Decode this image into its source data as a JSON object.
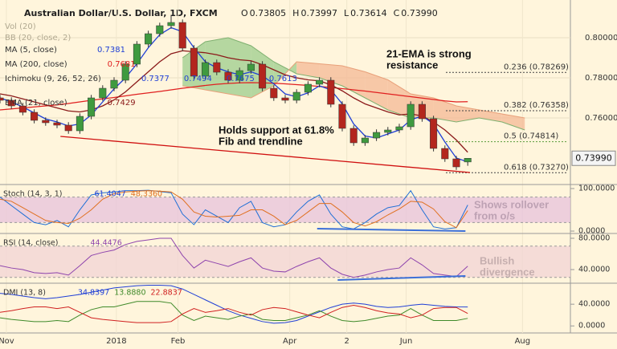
{
  "chart_data": {
    "type": "candlestick",
    "title": "Australian Dollar/U.S. Dollar, 1D, FXCM",
    "ohlc_header": [
      {
        "key": "O",
        "value": "0.73805"
      },
      {
        "key": "H",
        "value": "0.73997"
      },
      {
        "key": "L",
        "value": "0.73614"
      },
      {
        "key": "C",
        "value": "0.73990"
      }
    ],
    "indicator_legend": [
      {
        "name": "Vol (20)",
        "values": []
      },
      {
        "name": "BB (20, close, 2)",
        "values": []
      },
      {
        "name": "MA (5, close)",
        "values": [
          "0.7381"
        ],
        "color": "#1f3fd6"
      },
      {
        "name": "MA (200, close)",
        "values": [
          "0.7681"
        ],
        "color": "#e02020"
      },
      {
        "name": "Ichimoku (9, 26, 52, 26)",
        "values": [
          "0.7377",
          "0.7494",
          "0.7675",
          "0.7613"
        ],
        "color": "#1f3fd6"
      },
      {
        "name": "EMA (21, close)",
        "values": [
          "0.7429"
        ],
        "color": "#8b1a1a"
      }
    ],
    "x": [
      0,
      1,
      2,
      3,
      4,
      5,
      6,
      7,
      8,
      9,
      10,
      11,
      12,
      13,
      14,
      15,
      16,
      17,
      18,
      19,
      20,
      21,
      22,
      23,
      24,
      25,
      26,
      27,
      28,
      29,
      30,
      31,
      32,
      33,
      34,
      35,
      36,
      37,
      38,
      39,
      40,
      41
    ],
    "xlim": [
      0,
      50
    ],
    "xticks": [
      {
        "value": 0.56,
        "label": "Nov"
      },
      {
        "value": 10.2,
        "label": "2018"
      },
      {
        "value": 15.6,
        "label": "Feb"
      },
      {
        "value": 25.4,
        "label": "Apr"
      },
      {
        "value": 30.4,
        "label": "2"
      },
      {
        "value": 35.6,
        "label": "Jun"
      },
      {
        "value": 45.8,
        "label": "Aug"
      }
    ],
    "open": [
      0.77,
      0.7688,
      0.766,
      0.7628,
      0.7588,
      0.7576,
      0.7564,
      0.7536,
      0.7608,
      0.77,
      0.7748,
      0.7788,
      0.7868,
      0.7968,
      0.802,
      0.806,
      0.8076,
      0.7948,
      0.7808,
      0.7876,
      0.7828,
      0.7788,
      0.7836,
      0.7868,
      0.7748,
      0.77,
      0.7688,
      0.7728,
      0.7768,
      0.7788,
      0.7668,
      0.7548,
      0.7476,
      0.75,
      0.7528,
      0.754,
      0.7556,
      0.7668,
      0.7596,
      0.7448,
      0.7396,
      0.73805
    ],
    "high": [
      0.7715,
      0.7703,
      0.7675,
      0.7643,
      0.7603,
      0.7591,
      0.7579,
      0.7623,
      0.7715,
      0.7763,
      0.7803,
      0.7883,
      0.7983,
      0.8035,
      0.8075,
      0.811,
      0.8091,
      0.7963,
      0.7891,
      0.7891,
      0.7843,
      0.7851,
      0.7883,
      0.7883,
      0.7763,
      0.7715,
      0.7743,
      0.7783,
      0.7803,
      0.7803,
      0.7683,
      0.7563,
      0.7515,
      0.7543,
      0.7555,
      0.7571,
      0.7683,
      0.7683,
      0.7611,
      0.7463,
      0.7411,
      0.73997
    ],
    "low": [
      0.7673,
      0.7645,
      0.7613,
      0.7573,
      0.7561,
      0.7549,
      0.7521,
      0.7521,
      0.7593,
      0.7685,
      0.7733,
      0.7773,
      0.7853,
      0.7953,
      0.8005,
      0.8045,
      0.7933,
      0.7793,
      0.7793,
      0.7813,
      0.7773,
      0.7773,
      0.7821,
      0.7733,
      0.7685,
      0.7673,
      0.7673,
      0.7713,
      0.7753,
      0.7653,
      0.7533,
      0.7461,
      0.7461,
      0.7485,
      0.7513,
      0.7525,
      0.7541,
      0.7581,
      0.7433,
      0.7381,
      0.7341,
      0.73614
    ],
    "close": [
      0.7688,
      0.766,
      0.7628,
      0.7588,
      0.7576,
      0.7564,
      0.7536,
      0.7608,
      0.77,
      0.7748,
      0.7788,
      0.7868,
      0.7968,
      0.802,
      0.806,
      0.8076,
      0.7948,
      0.7808,
      0.7876,
      0.7828,
      0.7788,
      0.7836,
      0.7868,
      0.7748,
      0.77,
      0.7688,
      0.7728,
      0.7768,
      0.7788,
      0.7668,
      0.7548,
      0.7476,
      0.75,
      0.7528,
      0.754,
      0.7556,
      0.7668,
      0.7596,
      0.7448,
      0.7396,
      0.7356,
      0.7399
    ],
    "up_color": "#3f9a3f",
    "down_color": "#b3261e",
    "ylim": [
      0.7276,
      0.8168
    ],
    "yticks": [
      {
        "value": 0.8,
        "label": "0.80000"
      },
      {
        "value": 0.78,
        "label": "0.78000"
      },
      {
        "value": 0.76,
        "label": "0.76000"
      }
    ],
    "last_price": {
      "value": 0.7399,
      "label": "0.73990"
    },
    "overlays": [
      {
        "color": "#e02020",
        "values": [
          0.764,
          0.7645,
          0.765,
          0.7655,
          0.766,
          0.7665,
          0.7672,
          0.768,
          0.7688,
          0.7695,
          0.7702,
          0.771,
          0.7718,
          0.7725,
          0.7732,
          0.774,
          0.7748,
          0.7755,
          0.7762,
          0.7768,
          0.7772,
          0.7775,
          0.7776,
          0.7775,
          0.7773,
          0.777,
          0.7766,
          0.7762,
          0.7757,
          0.7752,
          0.7746,
          0.774,
          0.7734,
          0.7727,
          0.772,
          0.7713,
          0.7706,
          0.7699,
          0.7692,
          0.7685,
          0.768,
          0.7681
        ]
      },
      {
        "color": "#8b1a1a",
        "values": [
          0.772,
          0.771,
          0.7695,
          0.768,
          0.7665,
          0.765,
          0.7635,
          0.763,
          0.764,
          0.766,
          0.769,
          0.773,
          0.778,
          0.783,
          0.788,
          0.792,
          0.7935,
          0.793,
          0.7925,
          0.7915,
          0.79,
          0.789,
          0.7885,
          0.7865,
          0.784,
          0.7815,
          0.78,
          0.779,
          0.7785,
          0.7765,
          0.7735,
          0.77,
          0.767,
          0.765,
          0.763,
          0.7615,
          0.762,
          0.761,
          0.758,
          0.754,
          0.749,
          0.7429
        ]
      },
      {
        "color": "#1f3fd6",
        "values": [
          0.77,
          0.768,
          0.7655,
          0.7625,
          0.7595,
          0.758,
          0.756,
          0.757,
          0.7615,
          0.768,
          0.7745,
          0.78,
          0.787,
          0.795,
          0.8015,
          0.805,
          0.803,
          0.795,
          0.788,
          0.785,
          0.783,
          0.7815,
          0.783,
          0.781,
          0.777,
          0.772,
          0.7705,
          0.7725,
          0.776,
          0.774,
          0.767,
          0.757,
          0.751,
          0.75,
          0.752,
          0.754,
          0.759,
          0.761,
          0.757,
          0.748,
          0.74,
          0.7381
        ]
      }
    ],
    "cloud": {
      "x": [
        16,
        18,
        20,
        22,
        24,
        26,
        28,
        30,
        32,
        34,
        36,
        38,
        40,
        42,
        44,
        46
      ],
      "span_a": [
        0.79,
        0.798,
        0.8,
        0.796,
        0.788,
        0.782,
        0.78,
        0.776,
        0.77,
        0.764,
        0.76,
        0.76,
        0.758,
        0.76,
        0.758,
        0.754
      ],
      "span_b": [
        0.776,
        0.774,
        0.772,
        0.77,
        0.776,
        0.788,
        0.787,
        0.786,
        0.783,
        0.779,
        0.772,
        0.77,
        0.766,
        0.764,
        0.762,
        0.76
      ],
      "bull_color": "#9ccc8c",
      "bear_color": "#f4b896"
    },
    "trendline": {
      "x": [
        5.3,
        41.2
      ],
      "values": [
        0.7508,
        0.7328
      ],
      "color": "#d01010"
    },
    "fib_levels": [
      {
        "label": "0.236 (0.78269)",
        "value": 0.78269,
        "color": "#444444"
      },
      {
        "label": "0.382 (0.76358)",
        "value": 0.76358,
        "color": "#444444"
      },
      {
        "label": "0.5 (0.74814)",
        "value": 0.74814,
        "color": "#5a9a3a"
      },
      {
        "label": "0.618 (0.73270)",
        "value": 0.7327,
        "color": "#444444"
      }
    ],
    "annotations": [
      {
        "lines": [
          "21-EMA is strong",
          "resistance"
        ]
      },
      {
        "lines": [
          "Holds support at 61.8%",
          "Fib and trendline"
        ]
      },
      {
        "lines": [
          "Shows rollover",
          "from o/s"
        ]
      },
      {
        "lines": [
          "Bullish",
          "divergence"
        ]
      }
    ],
    "panels": [
      {
        "title": "Stoch (14, 3, 1)",
        "readouts": [
          {
            "text": "61.4047",
            "color": "#1f3fd6"
          },
          {
            "text": "48.3360",
            "color": "#e07020"
          }
        ],
        "ylim": [
          -7.5,
          105.7
        ],
        "yticks": [
          {
            "value": 0,
            "label": "0.0000"
          },
          {
            "value": 100,
            "label": "100.0000"
          }
        ],
        "band": [
          20,
          80
        ],
        "band_color": "#e8c6dc",
        "series": [
          {
            "color": "#1f6fd6",
            "values": [
              80,
              60,
              40,
              20,
              15,
              25,
              10,
              50,
              85,
              90,
              92,
              95,
              95,
              96,
              93,
              90,
              40,
              15,
              50,
              35,
              20,
              55,
              70,
              20,
              10,
              15,
              45,
              70,
              85,
              40,
              10,
              5,
              20,
              40,
              55,
              60,
              95,
              50,
              10,
              5,
              8,
              61.4
            ]
          },
          {
            "color": "#e07020",
            "values": [
              75,
              70,
              55,
              40,
              25,
              20,
              18,
              30,
              50,
              75,
              88,
              92,
              94,
              95,
              94,
              92,
              75,
              45,
              35,
              33,
              35,
              37,
              50,
              50,
              35,
              15,
              25,
              45,
              65,
              65,
              45,
              20,
              12,
              22,
              38,
              52,
              70,
              68,
              52,
              22,
              8,
              48.3
            ]
          }
        ],
        "guide": {
          "x": [
            27.8,
            40.8
          ],
          "values": [
            5.7,
            0
          ],
          "color": "#3b6fd8"
        }
      },
      {
        "title": "RSI (14, close)",
        "readouts": [
          {
            "text": "44.4476",
            "color": "#8e44ad"
          }
        ],
        "ylim": [
          23.6,
          84.1
        ],
        "yticks": [
          {
            "value": 40,
            "label": "40.0000"
          },
          {
            "value": 80,
            "label": "80.0000"
          }
        ],
        "band": [
          30,
          70
        ],
        "band_color": "#f2d6d6",
        "series": [
          {
            "color": "#8e44ad",
            "values": [
              45,
              42,
              40,
              36,
              35,
              36,
              33,
              45,
              58,
              62,
              65,
              72,
              76,
              78,
              80,
              80,
              58,
              42,
              52,
              48,
              44,
              50,
              55,
              42,
              38,
              37,
              44,
              50,
              55,
              42,
              34,
              30,
              33,
              37,
              40,
              42,
              55,
              46,
              35,
              33,
              31,
              44.4
            ]
          }
        ],
        "guide": {
          "x": [
            29.6,
            40.8
          ],
          "values": [
            26.7,
            31.8
          ],
          "color": "#3b6fd8"
        }
      },
      {
        "title": "DMI (13, 8)",
        "readouts": [
          {
            "text": "34.8397",
            "color": "#1f3fd6"
          },
          {
            "text": "13.8880",
            "color": "#3f8a2a"
          },
          {
            "text": "22.8837",
            "color": "#d02020"
          }
        ],
        "ylim": [
          -10,
          75.7
        ],
        "yticks": [
          {
            "value": 0,
            "label": "0.0000"
          },
          {
            "value": 40,
            "label": "40.0000"
          }
        ],
        "series": [
          {
            "color": "#1f3fd6",
            "values": [
              60,
              58,
              55,
              52,
              50,
              52,
              55,
              58,
              62,
              66,
              70,
              72,
              74,
              75,
              75,
              74,
              68,
              58,
              48,
              38,
              28,
              20,
              14,
              8,
              5,
              6,
              10,
              18,
              26,
              34,
              40,
              42,
              40,
              36,
              34,
              35,
              38,
              40,
              38,
              36,
              35,
              34.8
            ]
          },
          {
            "color": "#3f8a2a",
            "values": [
              15,
              12,
              10,
              8,
              8,
              10,
              8,
              20,
              30,
              35,
              35,
              40,
              45,
              45,
              45,
              42,
              20,
              10,
              18,
              15,
              12,
              18,
              22,
              12,
              10,
              10,
              15,
              20,
              28,
              18,
              10,
              8,
              10,
              14,
              18,
              20,
              32,
              20,
              10,
              10,
              10,
              13.9
            ]
          },
          {
            "color": "#d02020",
            "values": [
              25,
              28,
              32,
              35,
              35,
              32,
              35,
              25,
              15,
              12,
              10,
              8,
              6,
              6,
              6,
              8,
              22,
              32,
              25,
              28,
              32,
              25,
              20,
              30,
              34,
              32,
              26,
              20,
              15,
              25,
              34,
              38,
              34,
              28,
              24,
              22,
              15,
              20,
              32,
              34,
              34,
              22.9
            ]
          }
        ]
      }
    ]
  }
}
